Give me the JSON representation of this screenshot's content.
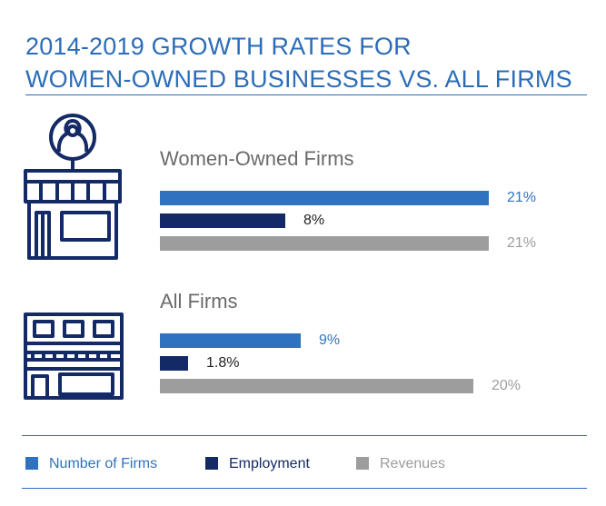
{
  "title": {
    "line1": "2014-2019 GROWTH RATES FOR",
    "line2": "WOMEN-OWNED BUSINESSES VS. ALL FIRMS"
  },
  "colors": {
    "number_of_firms": "#2f72bf",
    "employment": "#142a66",
    "revenues": "#9d9d9d",
    "accent": "#2c6db8"
  },
  "icons": {
    "women_owned": "storefront-with-woman-avatar-icon",
    "all_firms": "building-storefront-icon"
  },
  "chart_data": {
    "type": "bar",
    "orientation": "horizontal",
    "title": "2014-2019 GROWTH RATES FOR WOMEN-OWNED BUSINESSES VS. ALL FIRMS",
    "categories": [
      "Women-Owned Firms",
      "All Firms"
    ],
    "series": [
      {
        "name": "Number of Firms",
        "values": [
          21,
          9
        ],
        "labels": [
          "21%",
          "9%"
        ]
      },
      {
        "name": "Employment",
        "values": [
          8,
          1.8
        ],
        "labels": [
          "8%",
          "1.8%"
        ]
      },
      {
        "name": "Revenues",
        "values": [
          21,
          20
        ],
        "labels": [
          "21%",
          "20%"
        ]
      }
    ],
    "xlim": [
      0,
      21
    ],
    "grid": false,
    "legend_position": "bottom"
  }
}
